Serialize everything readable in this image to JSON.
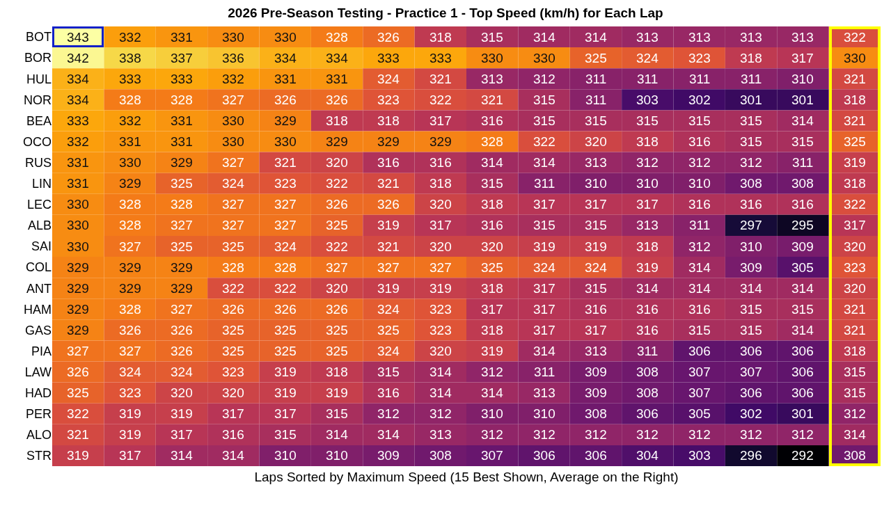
{
  "chart_data": {
    "type": "heatmap",
    "title": "2026 Pre-Season Testing - Practice 1 - Top Speed (km/h) for Each Lap",
    "xlabel": "Laps Sorted by Maximum Speed (15 Best Shown, Average on the Right)",
    "categories": [
      null,
      null,
      null,
      null,
      null,
      null,
      null,
      null,
      null,
      null,
      null,
      null,
      null,
      null,
      null,
      null
    ],
    "y_categories": [
      "BOT",
      "BOR",
      "HUL",
      "NOR",
      "BEA",
      "OCO",
      "RUS",
      "LIN",
      "LEC",
      "ALB",
      "SAI",
      "COL",
      "ANT",
      "HAM",
      "GAS",
      "PIA",
      "LAW",
      "HAD",
      "PER",
      "ALO",
      "STR"
    ],
    "cells": [
      [
        343,
        332,
        331,
        330,
        330,
        328,
        326,
        318,
        315,
        314,
        314,
        313,
        313,
        313,
        313,
        322
      ],
      [
        342,
        338,
        337,
        336,
        334,
        334,
        333,
        333,
        330,
        330,
        325,
        324,
        323,
        318,
        317,
        330
      ],
      [
        334,
        333,
        333,
        332,
        331,
        331,
        324,
        321,
        313,
        312,
        311,
        311,
        311,
        311,
        310,
        321
      ],
      [
        334,
        328,
        328,
        327,
        326,
        326,
        323,
        322,
        321,
        315,
        311,
        303,
        302,
        301,
        301,
        318
      ],
      [
        333,
        332,
        331,
        330,
        329,
        318,
        318,
        317,
        316,
        315,
        315,
        315,
        315,
        315,
        314,
        321
      ],
      [
        332,
        331,
        331,
        330,
        330,
        329,
        329,
        329,
        328,
        322,
        320,
        318,
        316,
        315,
        315,
        325
      ],
      [
        331,
        330,
        329,
        327,
        321,
        320,
        316,
        316,
        314,
        314,
        313,
        312,
        312,
        312,
        311,
        319
      ],
      [
        331,
        329,
        325,
        324,
        323,
        322,
        321,
        318,
        315,
        311,
        310,
        310,
        310,
        308,
        308,
        318
      ],
      [
        330,
        328,
        328,
        327,
        327,
        326,
        326,
        320,
        318,
        317,
        317,
        317,
        316,
        316,
        316,
        322
      ],
      [
        330,
        328,
        327,
        327,
        327,
        325,
        319,
        317,
        316,
        315,
        315,
        313,
        311,
        297,
        295,
        317
      ],
      [
        330,
        327,
        325,
        325,
        324,
        322,
        321,
        320,
        320,
        319,
        319,
        318,
        312,
        310,
        309,
        320
      ],
      [
        329,
        329,
        329,
        328,
        328,
        327,
        327,
        327,
        325,
        324,
        324,
        319,
        314,
        309,
        305,
        323
      ],
      [
        329,
        329,
        329,
        322,
        322,
        320,
        319,
        319,
        318,
        317,
        315,
        314,
        314,
        314,
        314,
        320
      ],
      [
        329,
        328,
        327,
        326,
        326,
        326,
        324,
        323,
        317,
        317,
        316,
        316,
        316,
        315,
        315,
        321
      ],
      [
        329,
        326,
        326,
        325,
        325,
        325,
        325,
        323,
        318,
        317,
        317,
        316,
        315,
        315,
        314,
        321
      ],
      [
        327,
        327,
        326,
        325,
        325,
        325,
        324,
        320,
        319,
        314,
        313,
        311,
        306,
        306,
        306,
        318
      ],
      [
        326,
        324,
        324,
        323,
        319,
        318,
        315,
        314,
        312,
        311,
        309,
        308,
        307,
        307,
        306,
        315
      ],
      [
        325,
        323,
        320,
        320,
        319,
        319,
        316,
        314,
        314,
        313,
        309,
        308,
        307,
        306,
        306,
        315
      ],
      [
        322,
        319,
        319,
        317,
        317,
        315,
        312,
        312,
        310,
        310,
        308,
        306,
        305,
        302,
        301,
        312
      ],
      [
        321,
        319,
        317,
        316,
        315,
        314,
        314,
        313,
        312,
        312,
        312,
        312,
        312,
        312,
        312,
        314
      ],
      [
        319,
        317,
        314,
        314,
        310,
        310,
        309,
        308,
        307,
        306,
        306,
        304,
        303,
        296,
        292,
        308
      ]
    ],
    "data_labels": true
  }
}
